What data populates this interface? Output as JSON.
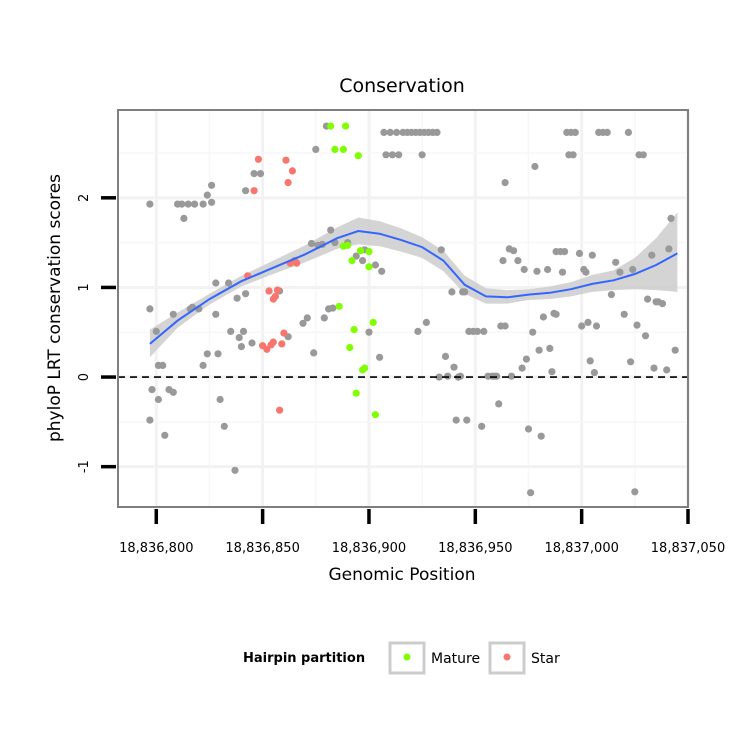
{
  "chart_data": {
    "type": "scatter",
    "title": "Conservation",
    "xlabel": "Genomic Position",
    "ylabel": "phyloP LRT conservation scores",
    "xlim": [
      18836782,
      18837050
    ],
    "ylim": [
      -1.45,
      2.98
    ],
    "x_ticks": [
      18836800,
      18836850,
      18836900,
      18836950,
      18837000,
      18837050
    ],
    "x_tick_labels": [
      "18,836,800",
      "18,836,850",
      "18,836,900",
      "18,836,950",
      "18,837,000",
      "18,837,050"
    ],
    "y_ticks": [
      -1,
      0,
      1,
      2
    ],
    "y_tick_labels": [
      "-1",
      "0",
      "1",
      "2"
    ],
    "hline": {
      "y": 0,
      "style": "dashed",
      "color": "#000000"
    },
    "grid": true,
    "legend": {
      "title": "Hairpin partition",
      "position": "bottom",
      "entries": [
        {
          "label": "Mature",
          "color": "#7FFF00"
        },
        {
          "label": "Star",
          "color": "#F8766D"
        }
      ]
    },
    "colors": {
      "other": "#999999",
      "mature": "#7FFF00",
      "star": "#F8766D",
      "smooth": "#3366FF",
      "ribbon": "#CCCCCC"
    },
    "series": [
      {
        "name": "Other",
        "points": [
          [
            18836797,
            1.93
          ],
          [
            18836797,
            0.76
          ],
          [
            18836797,
            -0.48
          ],
          [
            18836798,
            -0.14
          ],
          [
            18836800,
            0.51
          ],
          [
            18836801,
            0.13
          ],
          [
            18836801,
            -0.25
          ],
          [
            18836803,
            0.13
          ],
          [
            18836804,
            -0.65
          ],
          [
            18836806,
            -0.14
          ],
          [
            18836808,
            0.7
          ],
          [
            18836808,
            -0.17
          ],
          [
            18836810,
            1.93
          ],
          [
            18836812,
            1.93
          ],
          [
            18836813,
            1.77
          ],
          [
            18836815,
            1.93
          ],
          [
            18836816,
            0.76
          ],
          [
            18836818,
            1.93
          ],
          [
            18836820,
            0.76
          ],
          [
            18836822,
            1.93
          ],
          [
            18836822,
            0.13
          ],
          [
            18836824,
            2.03
          ],
          [
            18836824,
            0.26
          ],
          [
            18836826,
            2.14
          ],
          [
            18836826,
            1.95
          ],
          [
            18836828,
            1.05
          ],
          [
            18836828,
            0.7
          ],
          [
            18836829,
            0.26
          ],
          [
            18836830,
            -0.25
          ],
          [
            18836832,
            -0.55
          ],
          [
            18836834,
            1.05
          ],
          [
            18836835,
            0.51
          ],
          [
            18836837,
            -1.04
          ],
          [
            18836838,
            0.88
          ],
          [
            18836839,
            0.44
          ],
          [
            18836840,
            0.34
          ],
          [
            18836841,
            0.51
          ],
          [
            18836842,
            0.93
          ],
          [
            18836842,
            2.08
          ],
          [
            18836845,
            0.38
          ],
          [
            18836846,
            2.27
          ],
          [
            18836849,
            2.27
          ],
          [
            18836858,
            0.96
          ],
          [
            18836862,
            0.45
          ],
          [
            18836865,
            1.3
          ],
          [
            18836869,
            0.6
          ],
          [
            18836871,
            0.66
          ],
          [
            18836873,
            1.49
          ],
          [
            18836874,
            0.27
          ],
          [
            18836875,
            2.54
          ],
          [
            18836876,
            1.47
          ],
          [
            18836878,
            1.48
          ],
          [
            18836879,
            0.66
          ],
          [
            18836880,
            2.8
          ],
          [
            18836881,
            0.76
          ],
          [
            18836882,
            1.64
          ],
          [
            18836883,
            0.77
          ],
          [
            18836884,
            1.5
          ],
          [
            18836890,
            1.5
          ],
          [
            18836894,
            1.35
          ],
          [
            18836897,
            1.3
          ],
          [
            18836898,
            1.42
          ],
          [
            18836900,
            0.5
          ],
          [
            18836903,
            1.25
          ],
          [
            18836905,
            0.22
          ],
          [
            18836906,
            1.18
          ],
          [
            18836907,
            2.73
          ],
          [
            18836908,
            2.48
          ],
          [
            18836910,
            2.73
          ],
          [
            18836911,
            2.48
          ],
          [
            18836913,
            2.73
          ],
          [
            18836914,
            2.48
          ],
          [
            18836916,
            2.73
          ],
          [
            18836918,
            2.73
          ],
          [
            18836920,
            2.73
          ],
          [
            18836922,
            2.73
          ],
          [
            18836923,
            0.51
          ],
          [
            18836924,
            2.73
          ],
          [
            18836925,
            2.48
          ],
          [
            18836926,
            2.73
          ],
          [
            18836927,
            0.61
          ],
          [
            18836928,
            2.73
          ],
          [
            18836930,
            2.73
          ],
          [
            18836932,
            2.73
          ],
          [
            18836933,
            0.0
          ],
          [
            18836934,
            1.42
          ],
          [
            18836936,
            0.23
          ],
          [
            18836937,
            0.01
          ],
          [
            18836939,
            0.95
          ],
          [
            18836940,
            0.11
          ],
          [
            18836941,
            -0.48
          ],
          [
            18836942,
            0.0
          ],
          [
            18836943,
            0.01
          ],
          [
            18836944,
            0.95
          ],
          [
            18836946,
            -0.48
          ],
          [
            18836947,
            0.51
          ],
          [
            18836949,
            0.51
          ],
          [
            18836951,
            0.51
          ],
          [
            18836953,
            -0.55
          ],
          [
            18836954,
            0.51
          ],
          [
            18836956,
            0.01
          ],
          [
            18836958,
            0.01
          ],
          [
            18836959,
            0.01
          ],
          [
            18836960,
            0.01
          ],
          [
            18836961,
            -0.3
          ],
          [
            18836962,
            0.57
          ],
          [
            18836963,
            1.3
          ],
          [
            18836964,
            2.17
          ],
          [
            18836964,
            0.57
          ],
          [
            18836966,
            1.43
          ],
          [
            18836967,
            0.01
          ],
          [
            18836968,
            1.41
          ],
          [
            18836970,
            1.3
          ],
          [
            18836972,
            0.1
          ],
          [
            18836973,
            1.2
          ],
          [
            18836974,
            0.2
          ],
          [
            18836975,
            -0.58
          ],
          [
            18836976,
            -1.29
          ],
          [
            18836977,
            0.5
          ],
          [
            18836978,
            2.35
          ],
          [
            18836979,
            1.18
          ],
          [
            18836980,
            0.3
          ],
          [
            18836981,
            -0.66
          ],
          [
            18836982,
            0.67
          ],
          [
            18836984,
            1.2
          ],
          [
            18836985,
            0.32
          ],
          [
            18836986,
            0.06
          ],
          [
            18836987,
            0.71
          ],
          [
            18836988,
            1.4
          ],
          [
            18836990,
            1.4
          ],
          [
            18836991,
            1.17
          ],
          [
            18836992,
            1.4
          ],
          [
            18836993,
            2.73
          ],
          [
            18836994,
            2.48
          ],
          [
            18836995,
            2.73
          ],
          [
            18836996,
            2.48
          ],
          [
            18836997,
            2.73
          ],
          [
            18836999,
            1.38
          ],
          [
            18837000,
            0.57
          ],
          [
            18837001,
            1.2
          ],
          [
            18837002,
            1.17
          ],
          [
            18837003,
            0.61
          ],
          [
            18837004,
            0.18
          ],
          [
            18837005,
            1.36
          ],
          [
            18837006,
            0.05
          ],
          [
            18837007,
            0.57
          ],
          [
            18837008,
            2.73
          ],
          [
            18837010,
            2.73
          ],
          [
            18837012,
            2.73
          ],
          [
            18837014,
            0.92
          ],
          [
            18837016,
            1.28
          ],
          [
            18837018,
            1.17
          ],
          [
            18837020,
            0.7
          ],
          [
            18837022,
            2.73
          ],
          [
            18837023,
            0.17
          ],
          [
            18837024,
            1.2
          ],
          [
            18837025,
            -1.28
          ],
          [
            18837026,
            0.58
          ],
          [
            18837027,
            2.48
          ],
          [
            18837029,
            2.48
          ],
          [
            18837030,
            0.46
          ],
          [
            18837031,
            0.87
          ],
          [
            18837033,
            1.36
          ],
          [
            18837034,
            0.1
          ],
          [
            18837036,
            0.84
          ],
          [
            18837038,
            0.82
          ],
          [
            18837040,
            0.08
          ],
          [
            18837041,
            1.43
          ],
          [
            18837042,
            1.77
          ],
          [
            18837044,
            0.3
          ],
          [
            18836945,
            0.95
          ],
          [
            18836988,
            0.7
          ],
          [
            18837035,
            0.84
          ],
          [
            18836853,
            0.96
          ],
          [
            18836817,
            0.78
          ]
        ]
      },
      {
        "name": "Mature",
        "points": [
          [
            18836882,
            2.8
          ],
          [
            18836884,
            2.54
          ],
          [
            18836888,
            2.54
          ],
          [
            18836889,
            2.8
          ],
          [
            18836890,
            1.47
          ],
          [
            18836891,
            0.33
          ],
          [
            18836892,
            1.3
          ],
          [
            18836893,
            0.53
          ],
          [
            18836894,
            -0.18
          ],
          [
            18836895,
            2.47
          ],
          [
            18836896,
            1.41
          ],
          [
            18836897,
            0.08
          ],
          [
            18836898,
            0.1
          ],
          [
            18836900,
            1.4
          ],
          [
            18836900,
            1.23
          ],
          [
            18836902,
            0.61
          ],
          [
            18836903,
            -0.42
          ],
          [
            18836886,
            0.79
          ],
          [
            18836888,
            1.46
          ]
        ]
      },
      {
        "name": "Star",
        "points": [
          [
            18836843,
            1.13
          ],
          [
            18836846,
            2.08
          ],
          [
            18836848,
            2.43
          ],
          [
            18836850,
            0.35
          ],
          [
            18836852,
            0.31
          ],
          [
            18836853,
            0.96
          ],
          [
            18836855,
            0.39
          ],
          [
            18836856,
            0.9
          ],
          [
            18836858,
            -0.37
          ],
          [
            18836859,
            0.37
          ],
          [
            18836860,
            0.49
          ],
          [
            18836861,
            2.42
          ],
          [
            18836862,
            2.17
          ],
          [
            18836863,
            1.27
          ],
          [
            18836864,
            2.3
          ],
          [
            18836866,
            1.27
          ],
          [
            18836854,
            0.36
          ],
          [
            18836857,
            0.97
          ],
          [
            18836855,
            0.87
          ]
        ]
      }
    ],
    "smooth": {
      "method": "loess",
      "x": [
        18836797,
        18836810,
        18836825,
        18836840,
        18836855,
        18836870,
        18836885,
        18836895,
        18836905,
        18836915,
        18836925,
        18836935,
        18836945,
        18836955,
        18836965,
        18836975,
        18836985,
        18836995,
        18837005,
        18837015,
        18837025,
        18837035,
        18837045
      ],
      "y": [
        0.37,
        0.63,
        0.87,
        1.07,
        1.22,
        1.37,
        1.55,
        1.63,
        1.6,
        1.53,
        1.45,
        1.3,
        1.03,
        0.9,
        0.89,
        0.92,
        0.94,
        0.98,
        1.04,
        1.08,
        1.15,
        1.25,
        1.38
      ],
      "lo": [
        0.22,
        0.55,
        0.81,
        1.01,
        1.15,
        1.28,
        1.43,
        1.48,
        1.46,
        1.4,
        1.33,
        1.18,
        0.93,
        0.82,
        0.82,
        0.86,
        0.87,
        0.9,
        0.95,
        0.97,
        0.98,
        0.97,
        0.95
      ],
      "hi": [
        0.53,
        0.72,
        0.93,
        1.13,
        1.3,
        1.47,
        1.67,
        1.78,
        1.74,
        1.66,
        1.56,
        1.41,
        1.13,
        0.99,
        0.97,
        0.98,
        1.01,
        1.06,
        1.14,
        1.19,
        1.33,
        1.55,
        1.84
      ]
    }
  }
}
